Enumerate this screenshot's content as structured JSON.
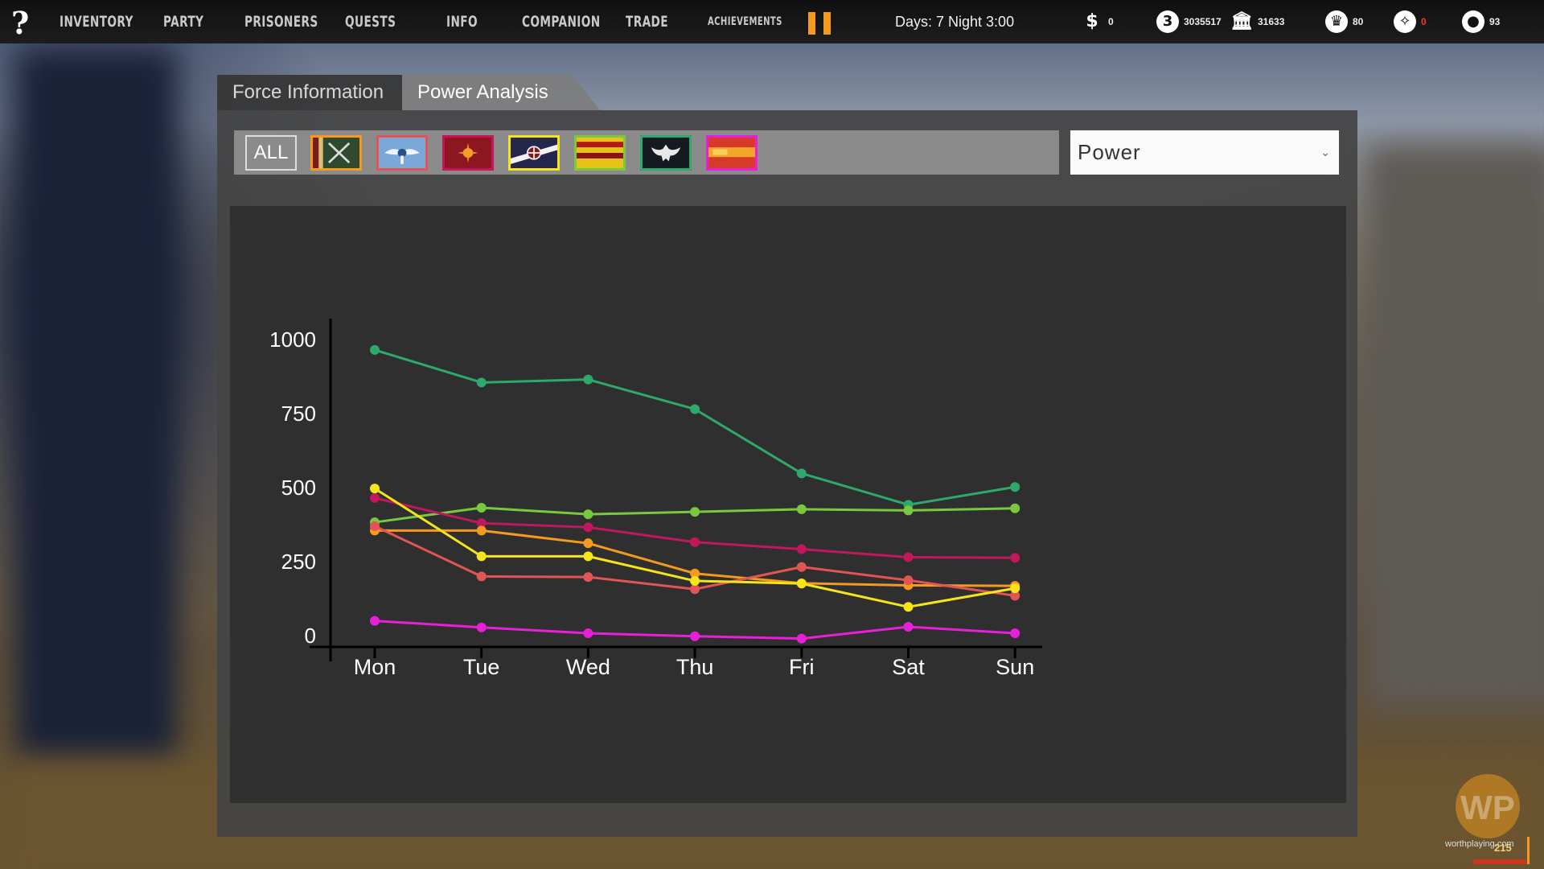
{
  "topbar": {
    "help_label": "?",
    "nav": [
      {
        "label": "INVENTORY"
      },
      {
        "label": "PARTY"
      },
      {
        "label": "PRISONERS"
      },
      {
        "label": "QUESTS"
      },
      {
        "label": "INFO"
      },
      {
        "label": "COMPANION"
      },
      {
        "label": "TRADE"
      },
      {
        "label": "ACHIEVEMENTS"
      }
    ],
    "pause_color": "#f49a1e",
    "daytime": "Days: 7 Night  3:00",
    "resources": [
      {
        "icon": "money-bag-icon",
        "glyph": "$",
        "value": "0"
      },
      {
        "icon": "gold-coin-icon",
        "glyph": "3",
        "value": "3035517"
      },
      {
        "icon": "bank-icon",
        "glyph": "🏛",
        "value": "31633"
      },
      {
        "icon": "reputation-icon",
        "glyph": "♛",
        "value": "80"
      },
      {
        "icon": "shield-emblem-icon",
        "glyph": "✧",
        "value": "0"
      },
      {
        "icon": "apple-food-icon",
        "glyph": "●",
        "value": "93"
      }
    ]
  },
  "tabs": {
    "force_information": "Force Information",
    "power_analysis": "Power Analysis"
  },
  "filters": {
    "all_label": "ALL",
    "factions": [
      {
        "icon": "faction-crossed-swords-flag-icon",
        "border": "#f49a1e"
      },
      {
        "icon": "faction-winged-emblem-flag-icon",
        "border": "#e25555"
      },
      {
        "icon": "faction-sun-crest-flag-icon",
        "border": "#c0175d"
      },
      {
        "icon": "faction-cross-shield-flag-icon",
        "border": "#f5e41a"
      },
      {
        "icon": "faction-red-yellow-stripe-flag-icon",
        "border": "#78c840"
      },
      {
        "icon": "faction-eagle-flag-icon",
        "border": "#2fa86c"
      },
      {
        "icon": "faction-orange-band-flag-icon",
        "border": "#e81fd8"
      }
    ]
  },
  "metric_select": {
    "selected": "Power"
  },
  "chart_data": {
    "type": "line",
    "categories": [
      "Mon",
      "Tue",
      "Wed",
      "Thu",
      "Fri",
      "Sat",
      "Sun"
    ],
    "ylim": [
      0,
      1000
    ],
    "yticks": [
      0,
      250,
      500,
      750,
      1000
    ],
    "series": [
      {
        "color": "#2fa86c",
        "values": [
          965,
          855,
          865,
          765,
          548,
          442,
          502
        ]
      },
      {
        "color": "#78c840",
        "values": [
          383,
          432,
          410,
          418,
          427,
          423,
          430
        ]
      },
      {
        "color": "#c0175d",
        "values": [
          465,
          380,
          366,
          316,
          292,
          265,
          263
        ]
      },
      {
        "color": "#f49a1e",
        "values": [
          355,
          355,
          312,
          210,
          177,
          170,
          168
        ]
      },
      {
        "color": "#e25555",
        "values": [
          370,
          200,
          198,
          157,
          232,
          187,
          135
        ]
      },
      {
        "color": "#f5e41a",
        "values": [
          497,
          268,
          268,
          185,
          176,
          97,
          160
        ]
      },
      {
        "color": "#e81fd8",
        "values": [
          50,
          28,
          8,
          -2,
          -10,
          30,
          8
        ]
      }
    ]
  },
  "watermark": {
    "text": "worthplaying.com",
    "logo": "WP",
    "badge_number": "215"
  }
}
